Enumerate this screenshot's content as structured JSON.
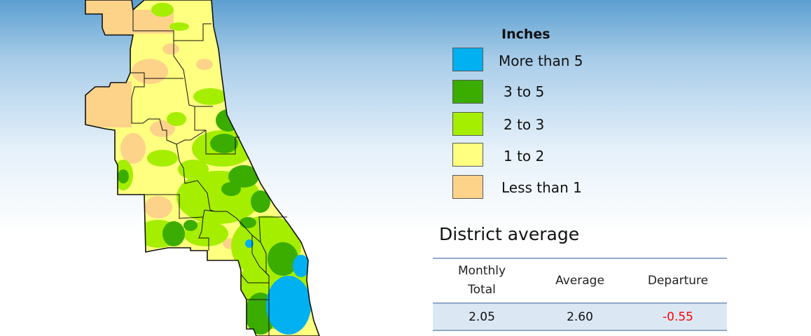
{
  "legend": {
    "title": "Inches",
    "items": [
      {
        "label": "More than 5",
        "color": "#00b0f0"
      },
      {
        "label": "3 to 5",
        "color": "#3aad00"
      },
      {
        "label": "2 to 3",
        "color": "#a6ee00"
      },
      {
        "label": "1 to 2",
        "color": "#ffff80"
      },
      {
        "label": "Less than 1",
        "color": "#fdd38a"
      }
    ]
  },
  "district_average": {
    "title": "District average",
    "headers": {
      "monthly_total": "Monthly Total",
      "average": "Average",
      "departure": "Departure"
    },
    "row": {
      "monthly_total": "2.05",
      "average": "2.60",
      "departure": "-0.55"
    },
    "departure_color": "#ff0000"
  },
  "map_colors": {
    "county_outline": "#111111",
    "rule_color": "#8fa9c9"
  }
}
